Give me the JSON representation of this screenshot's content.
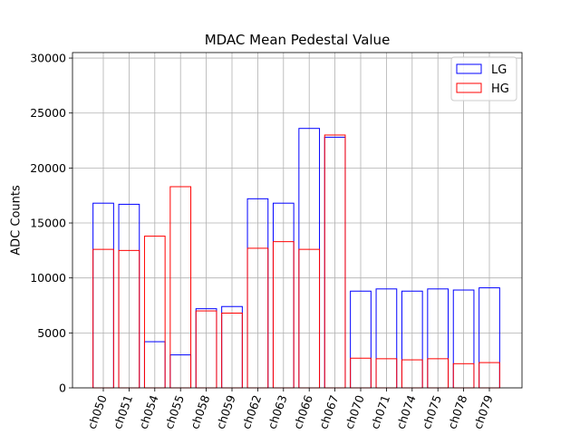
{
  "chart_data": {
    "type": "bar",
    "title": "MDAC Mean Pedestal Value",
    "xlabel": "",
    "ylabel": "ADC Counts",
    "ylim": [
      0,
      30500
    ],
    "yticks": [
      0,
      5000,
      10000,
      15000,
      20000,
      25000,
      30000
    ],
    "grid": true,
    "legend_position": "top-right",
    "categories": [
      "ch050",
      "ch051",
      "ch054",
      "ch055",
      "ch058",
      "ch059",
      "ch062",
      "ch063",
      "ch066",
      "ch067",
      "ch070",
      "ch071",
      "ch074",
      "ch075",
      "ch078",
      "ch079"
    ],
    "series": [
      {
        "name": "LG",
        "color": "#0000ff",
        "values": [
          16800,
          16700,
          4200,
          3000,
          7200,
          7400,
          17200,
          16800,
          23600,
          22800,
          8800,
          9000,
          8800,
          9000,
          8900,
          9100
        ]
      },
      {
        "name": "HG",
        "color": "#ff0000",
        "values": [
          12600,
          12500,
          13800,
          18300,
          7000,
          6800,
          12700,
          13300,
          12600,
          23000,
          2700,
          2650,
          2550,
          2650,
          2200,
          2300
        ]
      }
    ]
  }
}
